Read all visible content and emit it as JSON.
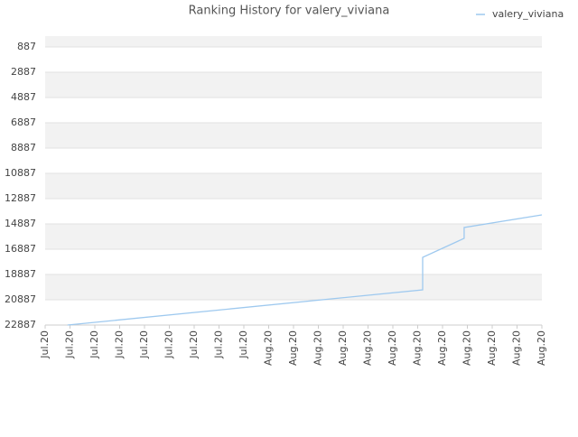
{
  "chart_data": {
    "type": "line",
    "title": "Ranking History for valery_viviana",
    "series": [
      {
        "name": "valery_viviana",
        "color": "#9ec9ef",
        "x": [
          0.9,
          15.2,
          15.2,
          16.87,
          16.87,
          20
        ],
        "values": [
          22887,
          20100,
          17530,
          16030,
          15170,
          14170
        ]
      }
    ],
    "xlim": [
      0,
      20
    ],
    "xticks": [
      {
        "value": 0,
        "label": "Jul.20"
      },
      {
        "value": 1,
        "label": "Jul.20"
      },
      {
        "value": 2,
        "label": "Jul.20"
      },
      {
        "value": 3,
        "label": "Jul.20"
      },
      {
        "value": 4,
        "label": "Jul.20"
      },
      {
        "value": 5,
        "label": "Jul.20"
      },
      {
        "value": 6,
        "label": "Jul.20"
      },
      {
        "value": 7,
        "label": "Jul.20"
      },
      {
        "value": 8,
        "label": "Jul.20"
      },
      {
        "value": 9,
        "label": "Aug.20"
      },
      {
        "value": 10,
        "label": "Aug.20"
      },
      {
        "value": 11,
        "label": "Aug.20"
      },
      {
        "value": 12,
        "label": "Aug.20"
      },
      {
        "value": 13,
        "label": "Aug.20"
      },
      {
        "value": 14,
        "label": "Aug.20"
      },
      {
        "value": 15,
        "label": "Aug.20"
      },
      {
        "value": 16,
        "label": "Aug.20"
      },
      {
        "value": 17,
        "label": "Aug.20"
      },
      {
        "value": 18,
        "label": "Aug.20"
      },
      {
        "value": 19,
        "label": "Aug.20"
      },
      {
        "value": 20,
        "label": "Aug.20"
      }
    ],
    "ylim": [
      22887,
      30
    ],
    "yticks": [
      887,
      2887,
      4887,
      6887,
      8887,
      10887,
      12887,
      14887,
      16887,
      18887,
      20887,
      22887
    ],
    "bands": true,
    "legend": "top-right"
  }
}
